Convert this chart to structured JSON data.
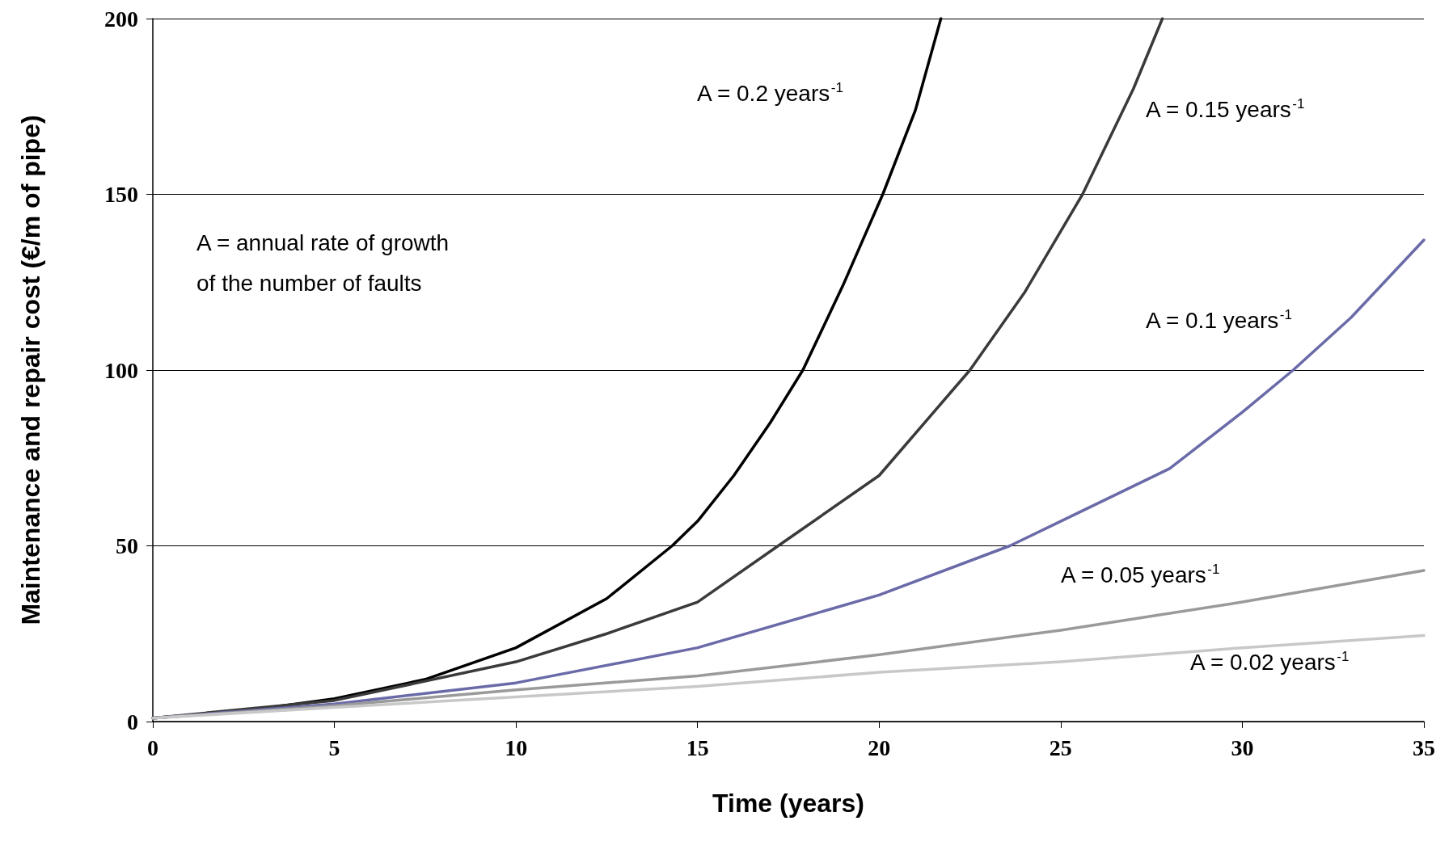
{
  "chart_data": {
    "type": "line",
    "xlabel": "Time (years)",
    "ylabel": "Maintenance and repair cost (€/m of pipe)",
    "xlim": [
      0,
      35
    ],
    "xticks": [
      0,
      5,
      10,
      15,
      20,
      25,
      30,
      35
    ],
    "ylim": [
      0,
      200
    ],
    "yticks": [
      0,
      50,
      100,
      150,
      200
    ],
    "grid": "y",
    "marker": "none",
    "line_style": "solid",
    "series": [
      {
        "color": "#000000",
        "x": [
          0,
          2.5,
          5,
          7.5,
          10,
          12.5,
          14.3,
          15,
          16,
          17,
          17.9,
          19,
          20.1,
          21,
          21.7
        ],
        "values": [
          1,
          3,
          6.5,
          12,
          21,
          35,
          50,
          57,
          70,
          85,
          100,
          124,
          150,
          174,
          200
        ]
      },
      {
        "color": "#3a3a3a",
        "x": [
          0,
          5,
          10,
          12.5,
          15,
          17.5,
          20,
          22.5,
          24,
          25.6,
          27,
          27.8
        ],
        "values": [
          1,
          6,
          17,
          25,
          34,
          52,
          70,
          100,
          122,
          150,
          180,
          200
        ]
      },
      {
        "color": "#6a6aa8",
        "x": [
          0,
          5,
          10,
          15,
          20,
          23.6,
          25,
          28,
          30,
          31.4,
          33,
          35
        ],
        "values": [
          1,
          5,
          11,
          21,
          36,
          50,
          57,
          72,
          88,
          100,
          115,
          137
        ]
      },
      {
        "color": "#9a9a9a",
        "x": [
          0,
          5,
          10,
          15,
          20,
          25,
          30,
          35
        ],
        "values": [
          1,
          4.5,
          9,
          13,
          19,
          26,
          34,
          43
        ]
      },
      {
        "color": "#c8c8c8",
        "x": [
          0,
          5,
          10,
          15,
          20,
          25,
          30,
          35
        ],
        "values": [
          1,
          4,
          7,
          10,
          14,
          17,
          21,
          24.5
        ]
      }
    ],
    "annotations": [
      "A = 0.2 years$^{-1}$",
      "A = 0.15 years$^{-1}$",
      "A = 0.1 years$^{-1}$",
      "A = 0.05 years$^{-1}$",
      "A = 0.02 years$^{-1}$",
      "A = annual rate of growth\nof the number of faults"
    ]
  }
}
